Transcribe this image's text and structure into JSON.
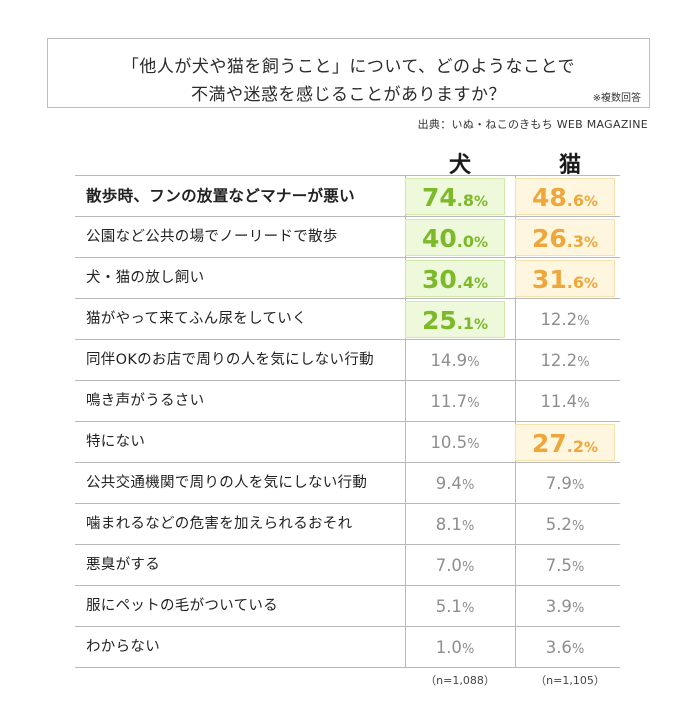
{
  "title_line1": "「他人が犬や猫を飼うこと」について、どのようなことで",
  "title_line2": "不満や迷惑を感じることがありますか？",
  "note": "※複数回答",
  "source": "出典：いぬ・ねこのきもち WEB MAGAZINE",
  "chart_data": {
    "type": "table",
    "columns": [
      "犬",
      "猫"
    ],
    "value_unit": "%",
    "series": [
      {
        "name": "犬",
        "values": [
          74.8,
          40.0,
          30.4,
          25.1,
          14.9,
          11.7,
          10.5,
          9.4,
          8.1,
          7.0,
          5.1,
          1.0
        ],
        "sample_size": "（n=1,088）",
        "highlight_color": "#7cba2a"
      },
      {
        "name": "猫",
        "values": [
          48.6,
          26.3,
          31.6,
          12.2,
          12.2,
          11.4,
          27.2,
          7.9,
          5.2,
          7.5,
          3.9,
          3.6
        ],
        "sample_size": "（n=1,105）",
        "highlight_color": "#eea73b"
      }
    ],
    "categories": [
      "散歩時、フンの放置などマナーが悪い",
      "公園など公共の場でノーリードで散歩",
      "犬・猫の放し飼い",
      "猫がやって来てふん尿をしていく",
      "同伴OKのお店で周りの人を気にしない行動",
      "鳴き声がうるさい",
      "特にない",
      "公共交通機関で周りの人を気にしない行動",
      "噛まれるなどの危害を加えられるおそれ",
      "悪臭がする",
      "服にペットの毛がついている",
      "わからない"
    ],
    "highlighted": {
      "犬": [
        0,
        1,
        2,
        3
      ],
      "猫": [
        0,
        1,
        2,
        6
      ]
    },
    "bold_category_index": 0
  }
}
